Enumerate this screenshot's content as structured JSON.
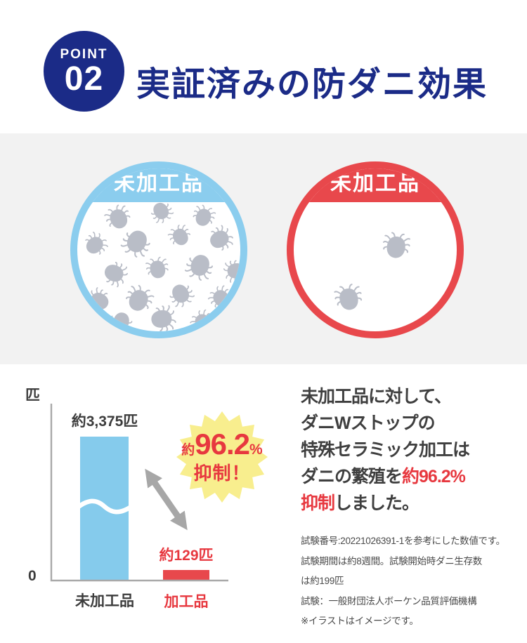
{
  "badge": {
    "label": "POINT",
    "number": "02"
  },
  "title": "実証済みの防ダニ効果",
  "comparison": {
    "left": {
      "label": "未加工品",
      "mite_count": 18
    },
    "right": {
      "label": "未加工品",
      "mite_count": 2
    }
  },
  "chart_data": {
    "type": "bar",
    "categories": [
      "未加工品",
      "加工品"
    ],
    "values": [
      3375,
      129
    ],
    "value_labels": [
      "約3,375匹",
      "約129匹"
    ],
    "ylabel": "匹",
    "origin_label": "0",
    "bar_colors": [
      "#85cbec",
      "#e8484c"
    ],
    "axis_break_on_bar": 0,
    "annotation": "約96.2%抑制！",
    "reduction_percent": 96.2
  },
  "annotation": {
    "prefix": "約",
    "value": "96.2",
    "unit": "%",
    "line2": "抑制！"
  },
  "result_text": {
    "line1": "未加工品に対して、",
    "line2": "ダニWストップの",
    "line3": "特殊セラミック加工は",
    "line4_normal": "ダニの繁殖を",
    "line4_red": "約96.2%",
    "line5_red": "抑制",
    "line5_normal": "しました。"
  },
  "footnotes": [
    "試験番号:20221026391-1を参考にした数値です。",
    "試験期間は約8週間。試験開始時ダニ生存数",
    "は約199匹",
    "試験：一般財団法人ボーケン品質評価機構",
    "※イラストはイメージです。"
  ],
  "colors": {
    "navy": "#1b2b87",
    "red": "#e8484c",
    "red_text": "#e7383f",
    "blue": "#8bcdee",
    "bar_blue": "#85cbec",
    "yellow": "#f8ee8e",
    "band_gray": "#f2f2f2",
    "ink": "#3c3c3c",
    "sub_ink": "#4a4a4a",
    "axis_gray": "#a9a9a9",
    "arrow_gray": "#a7a7a7",
    "mite_gray": "#b9bdc7"
  }
}
